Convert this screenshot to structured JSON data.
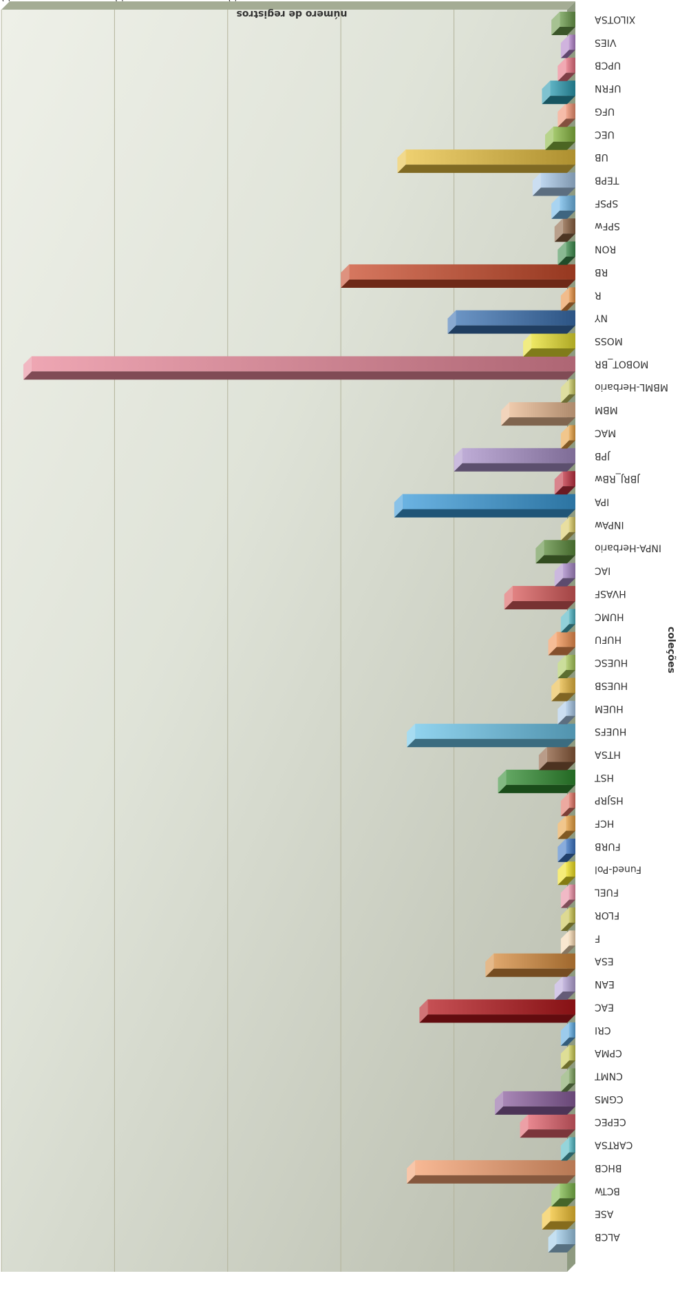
{
  "chart_data": {
    "type": "bar",
    "orientation": "horizontal",
    "rotated": "180deg",
    "xlabel": "coleções",
    "ylabel": "número de registros",
    "ylim": [
      0,
      180
    ],
    "yticks": [
      0,
      36,
      72,
      108,
      144,
      180
    ],
    "grid": true,
    "categories": [
      "ALCB",
      "ASE",
      "BCTw",
      "BHCB",
      "CARTSA",
      "CEPEC",
      "CGMS",
      "CNMT",
      "CPMA",
      "CRI",
      "EAC",
      "EAN",
      "ESA",
      "F",
      "FLOR",
      "FUEL",
      "Funed-Pol",
      "FURB",
      "HCF",
      "HSJRP",
      "HST",
      "HTSA",
      "HUEFS",
      "HUEM",
      "HUESB",
      "HUESC",
      "HUFU",
      "HUMC",
      "HVASF",
      "IAC",
      "INPA-Herbario",
      "INPAw",
      "IPA",
      "JBRJ_RBw",
      "JPB",
      "MAC",
      "MBM",
      "MBML-Herbario",
      "MOBOT_BR",
      "MOSS",
      "NY",
      "R",
      "RB",
      "RON",
      "SPFw",
      "SPSF",
      "TEPB",
      "UB",
      "UEC",
      "UFG",
      "UFRN",
      "UPCB",
      "VIES",
      "XILOTSA"
    ],
    "values": [
      6,
      8,
      5,
      51,
      2,
      15,
      23,
      2,
      2,
      2,
      47,
      4,
      26,
      2,
      2,
      2,
      3,
      3,
      3,
      2,
      22,
      9,
      51,
      3,
      5,
      3,
      6,
      2,
      20,
      4,
      10,
      2,
      55,
      4,
      36,
      2,
      21,
      2,
      173,
      14,
      38,
      2,
      72,
      3,
      4,
      5,
      11,
      54,
      7,
      3,
      8,
      3,
      2,
      5
    ],
    "colors": [
      "#9fcbe8",
      "#f2c232",
      "#7db84a",
      "#f4a070",
      "#4fb7c2",
      "#e0606b",
      "#8b5f9e",
      "#7aa05a",
      "#c8c850",
      "#5aa8e0",
      "#b3161b",
      "#b7a5d8",
      "#d48a3c",
      "#f5d7b0",
      "#c6c04a",
      "#e88aa0",
      "#f0e020",
      "#3a74c4",
      "#e8a040",
      "#e07060",
      "#2f8a2f",
      "#8a5a3a",
      "#6cc4e8",
      "#a8c8e8",
      "#e8b840",
      "#a8c858",
      "#f09050",
      "#48b0c0",
      "#d85a5a",
      "#a888c8",
      "#5a8a3a",
      "#d8c860",
      "#3a9ad8",
      "#c03040",
      "#a890c8",
      "#e8a040",
      "#e8b890",
      "#c8c860",
      "#e8889a",
      "#e8e030",
      "#3a70b0",
      "#e89040",
      "#c84a2a",
      "#3a8a4a",
      "#8a6040",
      "#70b8e8",
      "#a8c8e8",
      "#e8c040",
      "#88b840",
      "#f09070",
      "#2a9ab0",
      "#e87080",
      "#b080c8",
      "#6a9a4a"
    ]
  }
}
